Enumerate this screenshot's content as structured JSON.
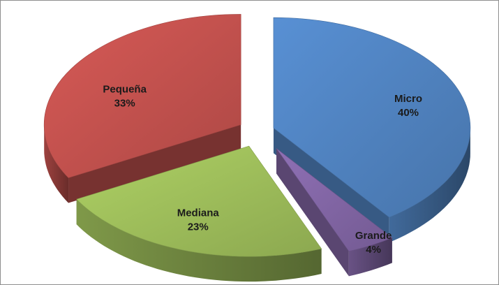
{
  "chart_data": {
    "type": "pie",
    "style": "3d-exploded",
    "title": "",
    "legend": "none",
    "slices": [
      {
        "name": "Micro",
        "percent_label": "40%",
        "value": 40,
        "color": "#4f81bd"
      },
      {
        "name": "Grande",
        "percent_label": "4%",
        "value": 4,
        "color": "#8064a2"
      },
      {
        "name": "Mediana",
        "percent_label": "23%",
        "value": 23,
        "color": "#9bbb59"
      },
      {
        "name": "Pequeña",
        "percent_label": "33%",
        "value": 33,
        "color": "#c0504d"
      }
    ]
  }
}
